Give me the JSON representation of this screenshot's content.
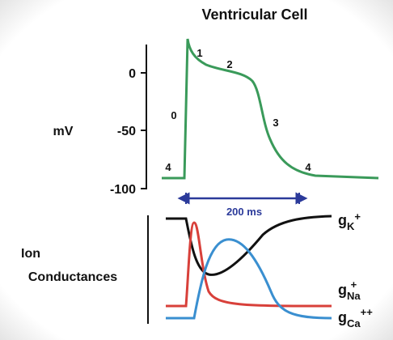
{
  "title": "Ventricular Cell",
  "voltage_axis": {
    "label": "mV",
    "ticks": [
      "0",
      "-50",
      "-100"
    ]
  },
  "phases": [
    "0",
    "1",
    "2",
    "3",
    "4",
    "4"
  ],
  "scale_bar": "200 ms",
  "conductance_axis": {
    "label": [
      "Ion",
      "Conductances"
    ]
  },
  "conductances": [
    {
      "base": "g",
      "sub": "K",
      "sup": "+"
    },
    {
      "base": "g",
      "sub": "Na",
      "sup": "+"
    },
    {
      "base": "g",
      "sub": "Ca",
      "sup": "++"
    }
  ]
}
